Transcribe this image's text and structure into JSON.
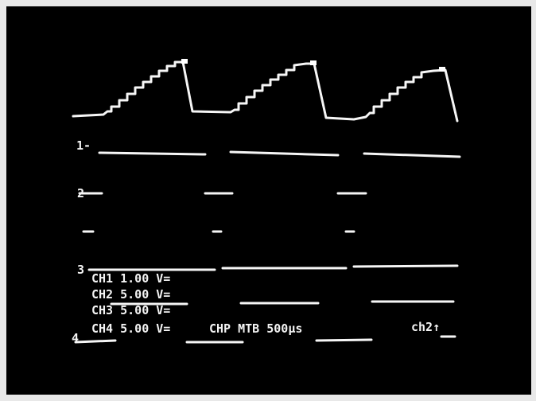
{
  "readout": {
    "channels": [
      "CH1 1.00 V=",
      "CH2 5.00 V=",
      "CH3 5.00 V=",
      "CH4 5.00 V="
    ],
    "timebase": "CHP MTB 500µs",
    "trigger": "ch2↑"
  },
  "markers": [
    "1-",
    "2",
    "3",
    "4"
  ]
}
